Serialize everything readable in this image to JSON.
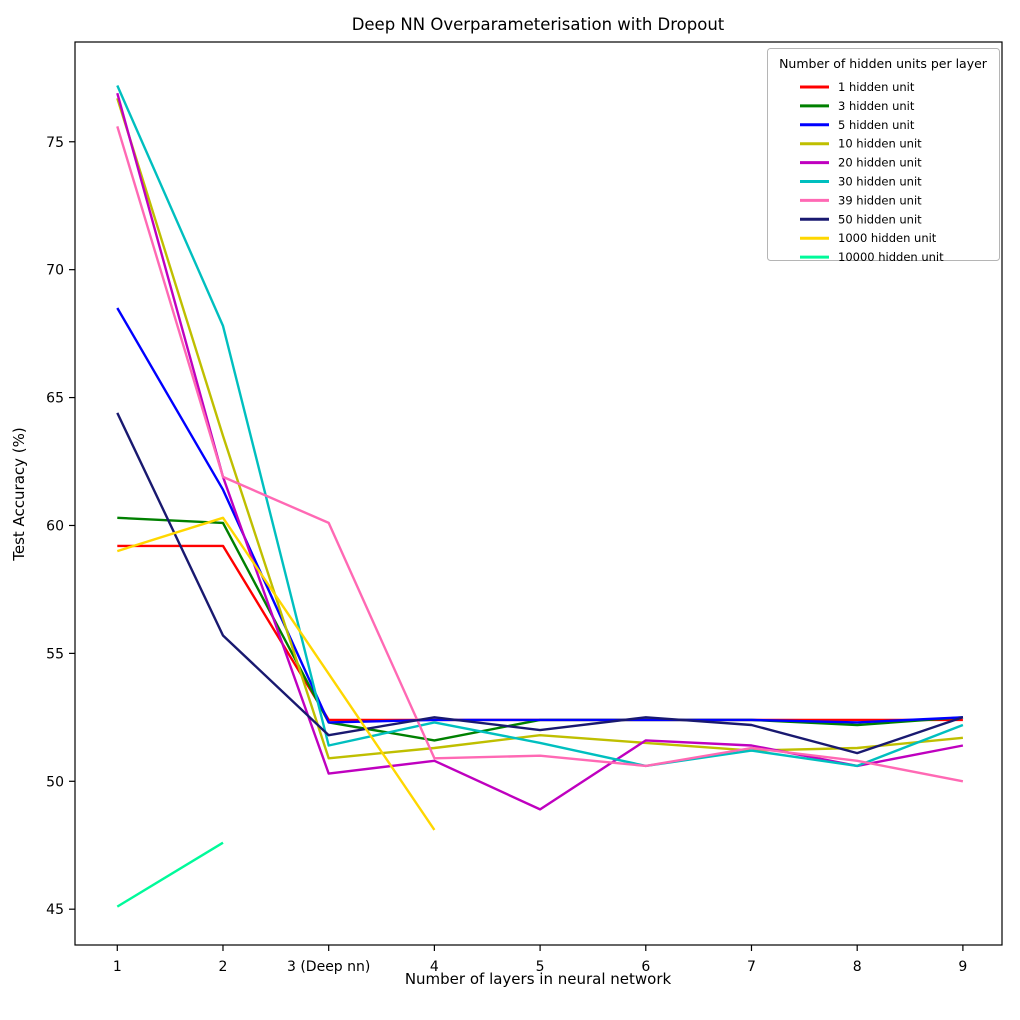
{
  "chart_data": {
    "type": "line",
    "title": "Deep NN Overparameterisation with Dropout",
    "xlabel": "Number of layers in neural network",
    "ylabel": "Test Accuracy (%)",
    "x": [
      1,
      2,
      3,
      4,
      5,
      6,
      7,
      8,
      9
    ],
    "x_tick_labels": [
      "1",
      "2",
      "3 (Deep nn)",
      "4",
      "5",
      "6",
      "7",
      "8",
      "9"
    ],
    "y_ticks": [
      45,
      50,
      55,
      60,
      65,
      70,
      75
    ],
    "y_tick_labels": [
      "45",
      "50",
      "55",
      "60",
      "65",
      "70",
      "75"
    ],
    "xlim": [
      0.6,
      9.37
    ],
    "ylim": [
      43.6,
      78.9
    ],
    "grid": false,
    "legend": {
      "title": "Number of hidden units per layer",
      "position": "upper right"
    },
    "series": [
      {
        "name": "1 hidden unit",
        "color": "#ff0000",
        "values": [
          59.2,
          59.2,
          52.4,
          52.4,
          52.4,
          52.4,
          52.4,
          52.4,
          52.4
        ]
      },
      {
        "name": "3 hidden unit",
        "color": "#008000",
        "values": [
          60.3,
          60.1,
          52.3,
          51.6,
          52.4,
          52.4,
          52.4,
          52.2,
          52.5
        ]
      },
      {
        "name": "5 hidden unit",
        "color": "#0000ff",
        "values": [
          68.5,
          61.4,
          52.3,
          52.4,
          52.4,
          52.4,
          52.4,
          52.3,
          52.5
        ]
      },
      {
        "name": "10 hidden unit",
        "color": "#bfbf00",
        "values": [
          76.7,
          63.5,
          50.9,
          51.3,
          51.8,
          51.5,
          51.2,
          51.3,
          51.7
        ]
      },
      {
        "name": "20 hidden unit",
        "color": "#bf00bf",
        "values": [
          76.9,
          61.9,
          50.3,
          50.8,
          48.9,
          51.6,
          51.4,
          50.6,
          51.4
        ]
      },
      {
        "name": "30 hidden unit",
        "color": "#00bfbf",
        "values": [
          77.2,
          67.8,
          51.4,
          52.3,
          51.5,
          50.6,
          51.2,
          50.6,
          52.2
        ]
      },
      {
        "name": "39 hidden unit",
        "color": "#ff69b4",
        "values": [
          75.6,
          61.9,
          60.1,
          50.9,
          51.0,
          50.6,
          51.3,
          50.8,
          50.0
        ]
      },
      {
        "name": "50 hidden unit",
        "color": "#191970",
        "values": [
          64.4,
          55.7,
          51.8,
          52.5,
          52.0,
          52.5,
          52.2,
          51.1,
          52.5
        ]
      },
      {
        "name": "1000 hidden unit",
        "color": "#ffd700",
        "values": [
          59.0,
          60.3,
          54.2,
          48.1,
          null,
          null,
          null,
          null,
          null
        ]
      },
      {
        "name": "10000 hidden unit",
        "color": "#00fa9a",
        "values": [
          45.1,
          47.6,
          null,
          null,
          null,
          null,
          null,
          null,
          null
        ]
      }
    ]
  }
}
